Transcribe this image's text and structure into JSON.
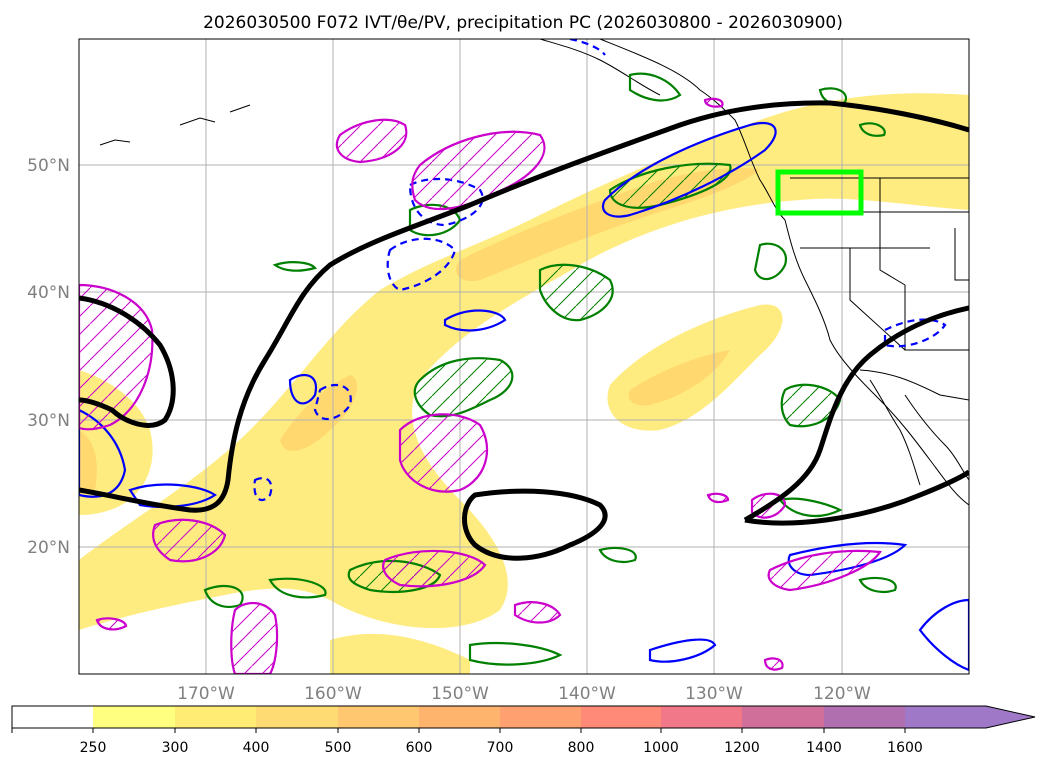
{
  "title": "2026030500 F072 IVT/θe/PV, precipitation PC (2026030800 - 2026030900)",
  "map": {
    "lat_labels": [
      "50°N",
      "40°N",
      "30°N",
      "20°N"
    ],
    "lon_labels": [
      "170°W",
      "160°W",
      "150°W",
      "140°W",
      "130°W",
      "120°W"
    ],
    "lat_values": [
      50,
      40,
      30,
      20
    ],
    "lon_values": [
      -170,
      -160,
      -150,
      -140,
      -130,
      -120
    ],
    "extent": {
      "lon_min": -180,
      "lon_max": -110,
      "lat_min": 10,
      "lat_max": 60
    },
    "target_box": {
      "lon_min": -125,
      "lon_max": -118,
      "lat_min": 46,
      "lat_max": 49.5
    }
  },
  "colorbar": {
    "label_text": [
      "250",
      "300",
      "400",
      "500",
      "600",
      "700",
      "800",
      "1000",
      "1200",
      "1400",
      "1600"
    ],
    "level_values": [
      250,
      300,
      400,
      500,
      600,
      700,
      800,
      1000,
      1200,
      1400,
      1600
    ],
    "colors": [
      "#ffff80",
      "#ffec75",
      "#ffdc73",
      "#ffc870",
      "#ffb46e",
      "#ffa070",
      "#ff8a78",
      "#f07888",
      "#d0709a",
      "#b070b0",
      "#a078c8"
    ],
    "extend": "max"
  },
  "colors": {
    "ivt_fill": "#ffe96b",
    "ivt_fill_core": "#ffc860",
    "theta_e": "#000000",
    "pv": "#cc00cc",
    "precip_pc_green": "#008000",
    "precip_pc_blue": "#0000ff",
    "target_box": "#00ff00"
  }
}
